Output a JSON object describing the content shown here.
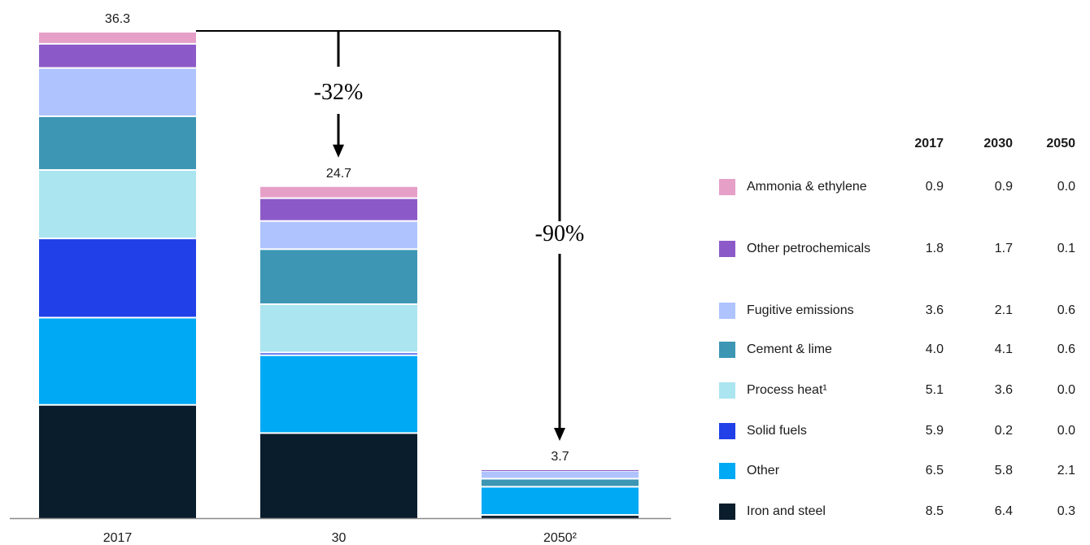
{
  "chart_data": {
    "type": "bar",
    "stacked": true,
    "categories": [
      "2017",
      "30",
      "2050²"
    ],
    "totals": [
      "36.3",
      "24.7",
      "3.7"
    ],
    "series": [
      {
        "name": "Iron and steel",
        "color": "#0a1d2d",
        "values": [
          8.5,
          6.4,
          0.3
        ]
      },
      {
        "name": "Other",
        "color": "#00a9f4",
        "values": [
          6.5,
          5.8,
          2.1
        ]
      },
      {
        "name": "Solid fuels",
        "color": "#2140e8",
        "values": [
          5.9,
          0.2,
          0.0
        ]
      },
      {
        "name": "Process heat¹",
        "color": "#abe5f0",
        "values": [
          5.1,
          3.6,
          0.0
        ]
      },
      {
        "name": "Cement & lime",
        "color": "#3c96b4",
        "values": [
          4.0,
          4.1,
          0.6
        ]
      },
      {
        "name": "Fugitive emissions",
        "color": "#afc3ff",
        "values": [
          3.6,
          2.1,
          0.6
        ]
      },
      {
        "name": "Other petrochemicals",
        "color": "#8c5ac8",
        "values": [
          1.8,
          1.7,
          0.1
        ]
      },
      {
        "name": "Ammonia & ethylene",
        "color": "#e6a0c8",
        "values": [
          0.9,
          0.9,
          0.0
        ]
      }
    ],
    "annotations": [
      {
        "label": "-32%",
        "from": "2017",
        "to": "30"
      },
      {
        "label": "-90%",
        "from": "2017",
        "to": "2050²"
      }
    ],
    "ylim": [
      0,
      36.3
    ]
  },
  "legend": {
    "headers": [
      "2017",
      "2030",
      "2050"
    ],
    "rows": [
      {
        "name": "Ammonia & ethylene",
        "color": "#e6a0c8",
        "v2017": "0.9",
        "v2030": "0.9",
        "v2050": "0.0"
      },
      {
        "name": "Other petrochemicals",
        "color": "#8c5ac8",
        "v2017": "1.8",
        "v2030": "1.7",
        "v2050": "0.1"
      },
      {
        "name": "Fugitive emissions",
        "color": "#afc3ff",
        "v2017": "3.6",
        "v2030": "2.1",
        "v2050": "0.6"
      },
      {
        "name": "Cement & lime",
        "color": "#3c96b4",
        "v2017": "4.0",
        "v2030": "4.1",
        "v2050": "0.6"
      },
      {
        "name": "Process heat¹",
        "color": "#abe5f0",
        "v2017": "5.1",
        "v2030": "3.6",
        "v2050": "0.0"
      },
      {
        "name": "Solid fuels",
        "color": "#2140e8",
        "v2017": "5.9",
        "v2030": "0.2",
        "v2050": "0.0"
      },
      {
        "name": "Other",
        "color": "#00a9f4",
        "v2017": "6.5",
        "v2030": "5.8",
        "v2050": "2.1"
      },
      {
        "name": "Iron and steel",
        "color": "#0a1d2d",
        "v2017": "8.5",
        "v2030": "6.4",
        "v2050": "0.3"
      }
    ]
  }
}
